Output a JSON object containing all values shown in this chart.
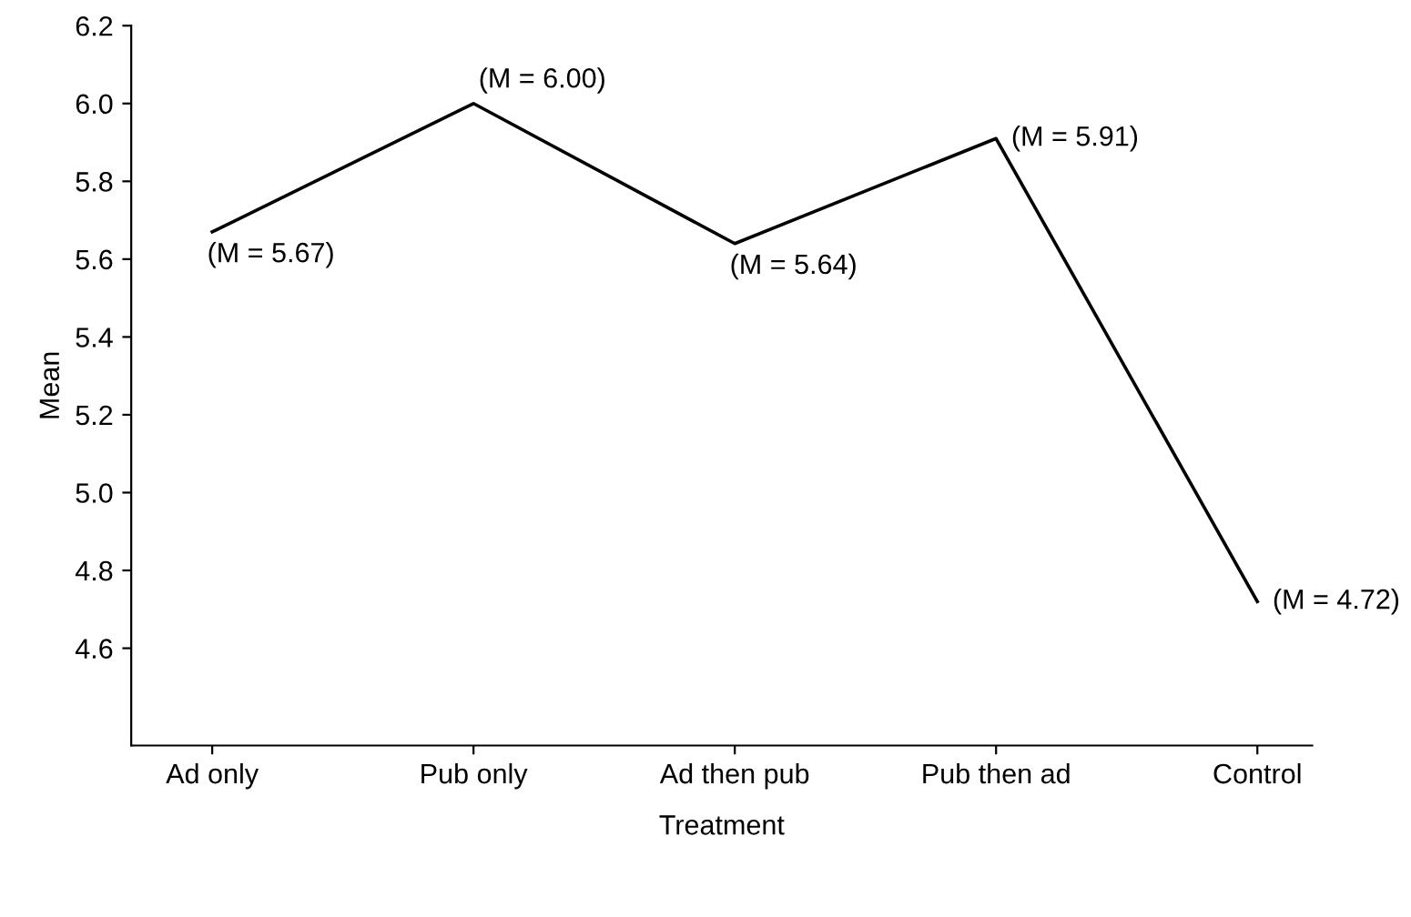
{
  "chart_data": {
    "type": "line",
    "xlabel": "Treatment",
    "ylabel": "Mean",
    "categories": [
      "Ad only",
      "Pub only",
      "Ad then pub",
      "Pub then ad",
      "Control"
    ],
    "series": [
      {
        "color": "#000000",
        "values": [
          5.67,
          6.0,
          5.64,
          5.91,
          4.72
        ],
        "value_labels": [
          "(M = 5.67)",
          "(M = 6.00)",
          "(M = 5.64)",
          "(M = 5.91)",
          "(M = 4.72)"
        ]
      }
    ],
    "ylim": [
      4.35,
      6.2
    ],
    "yticks": [
      4.6,
      4.8,
      {
        "value": 5,
        "label": "5.0"
      },
      5.2,
      5.4,
      5.6,
      5.8,
      {
        "value": 6,
        "label": "6.0"
      },
      6.2
    ],
    "grid": false,
    "legend": false,
    "marker": "none",
    "line_style": "solid"
  }
}
